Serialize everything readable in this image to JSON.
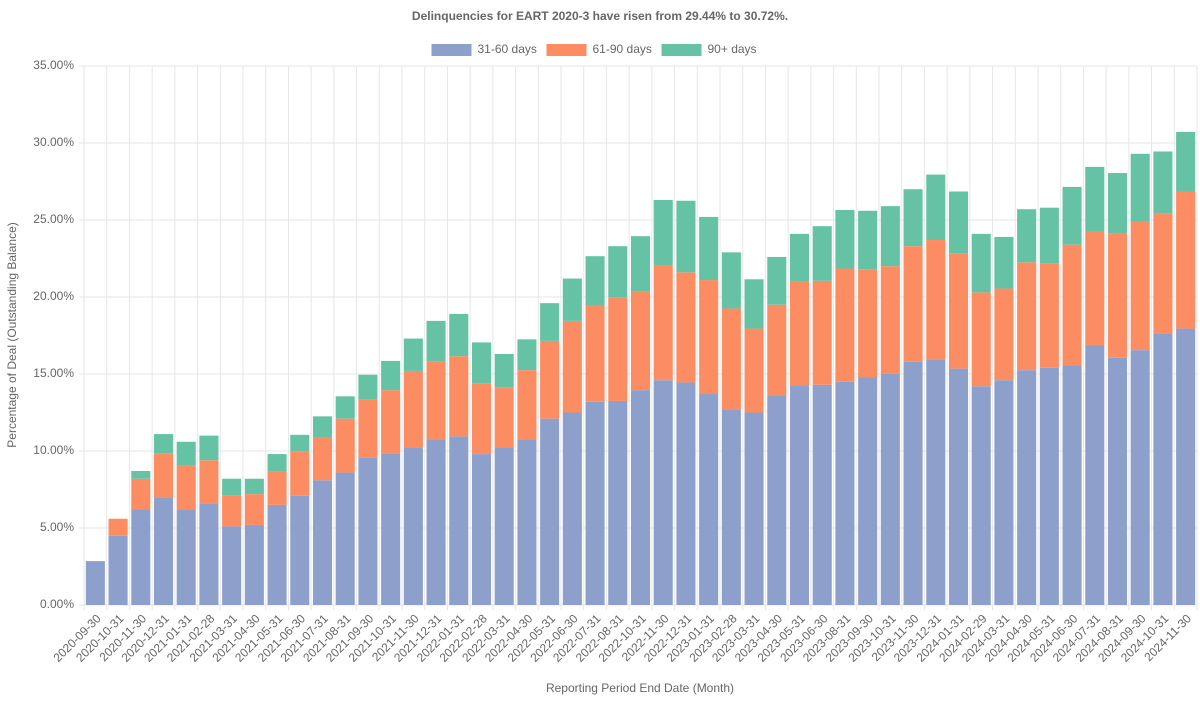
{
  "chart_data": {
    "type": "stacked_bar",
    "title": "Delinquencies for EART 2020-3 have risen from 29.44% to 30.72%.",
    "x_label": "Reporting Period End Date (Month)",
    "y_label": "Percentage of Deal (Outstanding Balance)",
    "categories": [
      "2020-09-30",
      "2020-10-31",
      "2020-11-30",
      "2020-12-31",
      "2021-01-31",
      "2021-02-28",
      "2021-03-31",
      "2021-04-30",
      "2021-05-31",
      "2021-06-30",
      "2021-07-31",
      "2021-08-31",
      "2021-09-30",
      "2021-10-31",
      "2021-11-30",
      "2021-12-31",
      "2022-01-31",
      "2022-02-28",
      "2022-03-31",
      "2022-04-30",
      "2022-05-31",
      "2022-06-30",
      "2022-07-31",
      "2022-08-31",
      "2022-10-31",
      "2022-11-30",
      "2022-12-31",
      "2023-01-31",
      "2023-02-28",
      "2023-03-31",
      "2023-04-30",
      "2023-05-31",
      "2023-06-30",
      "2023-08-31",
      "2023-09-30",
      "2023-10-31",
      "2023-11-30",
      "2023-12-31",
      "2024-01-31",
      "2024-02-29",
      "2024-03-31",
      "2024-04-30",
      "2024-05-31",
      "2024-06-30",
      "2024-07-31",
      "2024-08-31",
      "2024-09-30",
      "2024-10-31",
      "2024-11-30"
    ],
    "series": [
      {
        "name": "31-60 days",
        "color": "#8da0cb",
        "values": [
          2.85,
          4.5,
          6.2,
          6.95,
          6.2,
          6.6,
          5.1,
          5.2,
          6.5,
          7.1,
          8.1,
          8.6,
          9.55,
          9.85,
          10.25,
          10.75,
          10.95,
          9.8,
          10.25,
          10.75,
          12.1,
          12.5,
          13.2,
          13.25,
          13.95,
          14.6,
          14.45,
          13.7,
          12.7,
          12.5,
          13.6,
          14.25,
          14.3,
          14.5,
          14.8,
          15.05,
          15.8,
          15.95,
          15.35,
          14.2,
          14.6,
          15.25,
          15.4,
          15.55,
          16.85,
          16.05,
          16.55,
          17.65,
          17.95
        ]
      },
      {
        "name": "61-90 days",
        "color": "#fc8d62",
        "values": [
          0,
          1.1,
          2.0,
          2.9,
          2.85,
          2.8,
          2.0,
          2.0,
          2.2,
          2.85,
          2.75,
          3.5,
          3.8,
          4.1,
          4.95,
          5.05,
          5.2,
          4.6,
          3.9,
          4.5,
          5.05,
          5.95,
          6.25,
          6.7,
          6.4,
          7.45,
          7.15,
          7.4,
          6.55,
          5.45,
          5.9,
          6.75,
          6.75,
          7.35,
          7.0,
          6.95,
          7.5,
          7.75,
          7.5,
          6.1,
          5.95,
          7.0,
          6.8,
          7.85,
          7.4,
          8.05,
          8.35,
          7.8,
          8.9
        ]
      },
      {
        "name": "90+ days",
        "color": "#66c2a5",
        "values": [
          0,
          0,
          0.5,
          1.25,
          1.55,
          1.6,
          1.1,
          1.0,
          1.1,
          1.1,
          1.4,
          1.45,
          1.6,
          1.9,
          2.1,
          2.65,
          2.75,
          2.65,
          2.15,
          2.0,
          2.45,
          2.75,
          3.2,
          3.35,
          3.6,
          4.25,
          4.65,
          4.1,
          3.65,
          3.2,
          3.1,
          3.1,
          3.55,
          3.8,
          3.8,
          3.9,
          3.7,
          4.25,
          4.0,
          3.8,
          3.35,
          3.45,
          3.6,
          3.75,
          4.2,
          3.95,
          4.4,
          4.0,
          3.87
        ]
      }
    ],
    "ylim": [
      0,
      35
    ],
    "yticks": [
      {
        "value": 0,
        "label": "0.00%"
      },
      {
        "value": 5,
        "label": "5.00%"
      },
      {
        "value": 10,
        "label": "10.00%"
      },
      {
        "value": 15,
        "label": "15.00%"
      },
      {
        "value": 20,
        "label": "20.00%"
      },
      {
        "value": 25,
        "label": "25.00%"
      },
      {
        "value": 30,
        "label": "30.00%"
      },
      {
        "value": 35,
        "label": "35.00%"
      }
    ],
    "grid": true,
    "legend": "top"
  }
}
